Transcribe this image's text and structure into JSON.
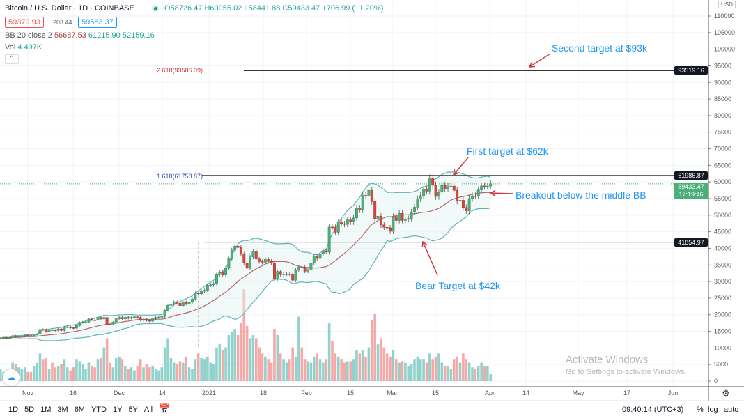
{
  "header": {
    "symbol": "Bitcoin / U.S. Dollar · 1D · COINBASE",
    "ohlc": "O58726.47 H60055.02 L58441.88 C59433.47 +706.99 (+1.20%)",
    "sell_price": "59379.93",
    "spread": "203.44",
    "buy_price": "59583.37",
    "bb_label": "BB 20 close 2",
    "bb_mid": "56687.53",
    "bb_upper": "61215.90",
    "bb_lower": "52159.16",
    "vol_label": "Vol",
    "vol_value": "4.497K",
    "collapse": "⌃"
  },
  "axis": {
    "currency": "USD",
    "y_ticks": [
      0,
      5000,
      10000,
      15000,
      20000,
      25000,
      30000,
      35000,
      40000,
      45000,
      50000,
      55000,
      60000,
      65000,
      70000,
      75000,
      80000,
      85000,
      90000,
      95000,
      100000,
      105000,
      110000
    ],
    "x_ticks": [
      "Nov",
      "16",
      "Dec",
      "14",
      "2021",
      "18",
      "Feb",
      "15",
      "Mar",
      "15",
      "Apr",
      "14",
      "May",
      "17",
      "Jun"
    ],
    "price_labels": {
      "second": "93519.16",
      "first": "61986.87",
      "bear": "41854.97",
      "current": "59433.47",
      "countdown": "17:19:46"
    }
  },
  "fib": {
    "f2618": "2.618(93586.09)",
    "f1618": "1.618(61758.87)"
  },
  "annotations": {
    "second": "Second target at $93k",
    "first": "First target at $62k",
    "breakout": "Breakout below the middle BB",
    "bear": "Bear Target at $42k"
  },
  "watermark": {
    "title": "Activate Windows",
    "sub": "Go to Settings to activate Windows."
  },
  "toolbar": {
    "ranges": [
      "1D",
      "5D",
      "1M",
      "3M",
      "6M",
      "YTD",
      "1Y",
      "5Y",
      "All"
    ],
    "time": "09:40:14 (UTC+3)",
    "pct": "%",
    "log": "log",
    "auto": "auto"
  },
  "colors": {
    "up": "#26a69a",
    "down": "#ef5350",
    "bb": "#5fb3b3",
    "basis": "#b06a6a",
    "annotation": "#2196f3",
    "arrow": "#d0393b"
  },
  "chart_data": {
    "type": "candlestick",
    "start_date": "2020-10-23",
    "interval": "1D",
    "ylim": [
      0,
      110000
    ],
    "bollinger": {
      "length": 20,
      "mult": 2
    },
    "close": [
      12930,
      13120,
      13040,
      13070,
      13650,
      13270,
      13460,
      13560,
      13800,
      13760,
      13550,
      13950,
      14130,
      15590,
      15580,
      14840,
      15480,
      15330,
      15300,
      15700,
      15290,
      16300,
      16330,
      16070,
      15960,
      16730,
      17660,
      17800,
      17820,
      18680,
      18420,
      18370,
      19160,
      18720,
      19170,
      17150,
      17140,
      17730,
      18790,
      19200,
      18770,
      19220,
      18930,
      19150,
      19360,
      19170,
      18320,
      18550,
      18250,
      18040,
      18800,
      19170,
      19270,
      19440,
      21340,
      22800,
      23140,
      23870,
      23480,
      22740,
      23820,
      23250,
      23740,
      24690,
      26490,
      26280,
      27080,
      27360,
      28890,
      29000,
      29370,
      32130,
      32780,
      31970,
      33990,
      36820,
      39470,
      40670,
      40240,
      38240,
      35540,
      34010,
      37390,
      39150,
      36770,
      36010,
      35800,
      36630,
      36050,
      35550,
      30830,
      33010,
      32080,
      32260,
      32290,
      32250,
      30400,
      33400,
      34300,
      34280,
      33110,
      33540,
      35510,
      37620,
      36940,
      38290,
      39260,
      38880,
      46420,
      46360,
      44850,
      47970,
      47410,
      47200,
      48580,
      47930,
      49160,
      52150,
      51600,
      55940,
      55930,
      57490,
      54100,
      48880,
      49710,
      47060,
      46340,
      46200,
      45140,
      49630,
      48380,
      50540,
      48410,
      48780,
      49000,
      50970,
      52400,
      54920,
      55870,
      57810,
      57230,
      61190,
      59000,
      55640,
      56920,
      58940,
      58000,
      58600,
      58770,
      57450,
      54200,
      54500,
      52300,
      51300,
      55000,
      55840,
      55780,
      57600,
      58800,
      58740,
      58760,
      59433
    ],
    "volume_k": [
      8,
      6,
      5,
      7,
      12,
      11,
      9,
      8,
      9,
      6,
      6,
      10,
      12,
      18,
      14,
      15,
      8,
      12,
      9,
      10,
      11,
      14,
      9,
      7,
      9,
      14,
      13,
      11,
      8,
      12,
      10,
      9,
      14,
      15,
      22,
      28,
      12,
      9,
      15,
      16,
      14,
      10,
      8,
      9,
      7,
      10,
      14,
      9,
      11,
      9,
      10,
      8,
      7,
      9,
      22,
      28,
      15,
      12,
      11,
      13,
      12,
      16,
      9,
      8,
      14,
      18,
      15,
      14,
      16,
      12,
      11,
      22,
      24,
      20,
      22,
      30,
      32,
      34,
      30,
      38,
      60,
      36,
      28,
      30,
      28,
      22,
      18,
      16,
      14,
      12,
      34,
      30,
      18,
      14,
      12,
      14,
      22,
      16,
      42,
      22,
      14,
      13,
      12,
      16,
      18,
      14,
      12,
      14,
      38,
      26,
      18,
      16,
      14,
      12,
      13,
      13,
      14,
      20,
      18,
      20,
      16,
      22,
      40,
      44,
      24,
      28,
      22,
      18,
      16,
      20,
      14,
      12,
      13,
      12,
      10,
      11,
      14,
      16,
      14,
      14,
      12,
      18,
      14,
      16,
      18,
      12,
      10,
      10,
      8,
      14,
      16,
      12,
      18,
      14,
      12,
      9,
      8,
      10,
      12,
      10,
      10,
      4.5
    ],
    "levels": [
      93519.16,
      61986.87,
      41854.97
    ]
  }
}
